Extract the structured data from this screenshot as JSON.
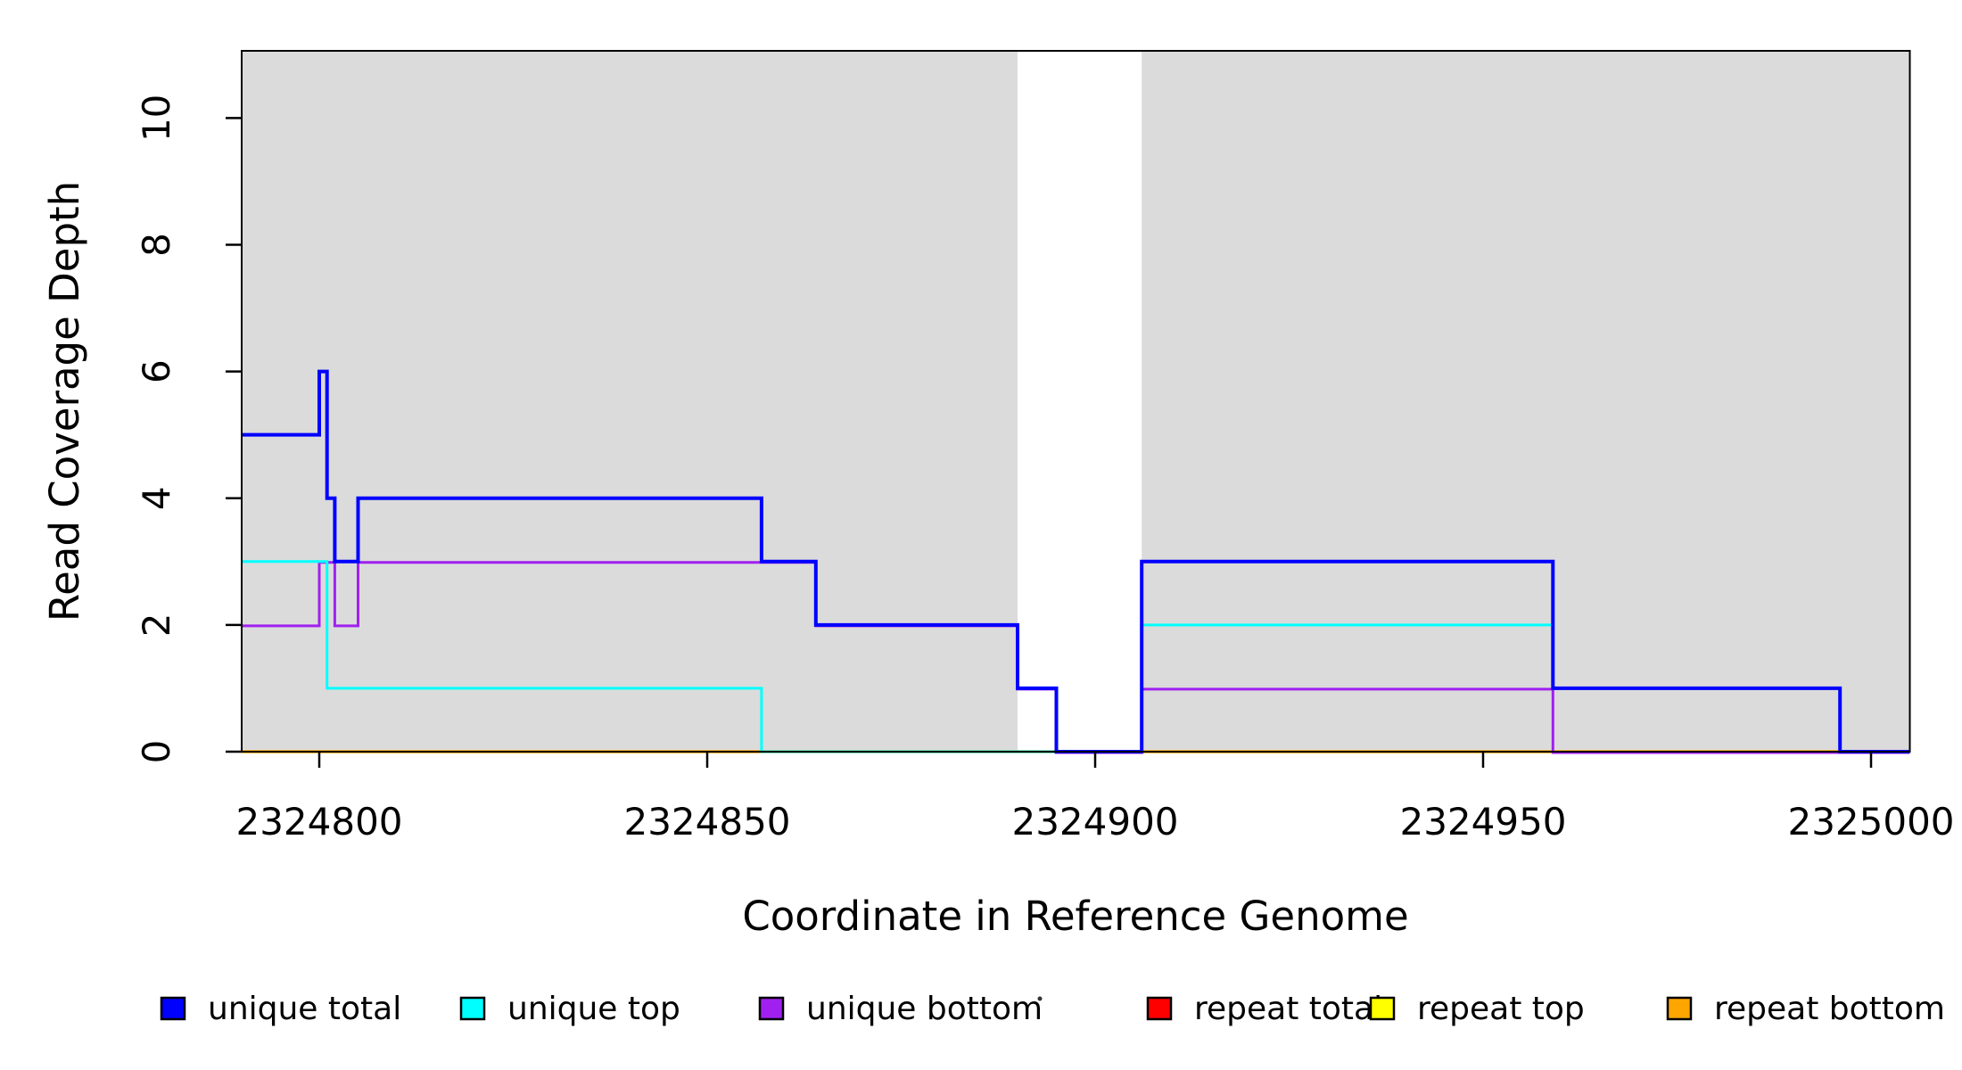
{
  "chart_data": {
    "type": "line",
    "subtype": "step-coverage",
    "title": "",
    "xlabel": "Coordinate in Reference Genome",
    "ylabel": "Read Coverage Depth",
    "xlim": [
      2324790,
      2325005
    ],
    "ylim": [
      0,
      11.06
    ],
    "x_ticks": [
      2324800,
      2324850,
      2324900,
      2324950,
      2325000
    ],
    "y_ticks": [
      0,
      2,
      4,
      6,
      8,
      10
    ],
    "grid": false,
    "background_color": "#ffffff",
    "shaded_regions": {
      "name": "repeat-masked-blocks",
      "color": "#dbdbdb",
      "intervals": [
        [
          2324790,
          2324890
        ],
        [
          2324906,
          2325005
        ]
      ]
    },
    "series": [
      {
        "name": "repeat total",
        "color": "#FF0000",
        "width": 2.5,
        "dy": 0,
        "steps": [
          [
            2324790,
            0
          ],
          [
            2325005,
            0
          ]
        ]
      },
      {
        "name": "repeat top",
        "color": "#FFFF00",
        "width": 2.5,
        "dy": 0,
        "steps": [
          [
            2324790,
            0
          ],
          [
            2325005,
            0
          ]
        ]
      },
      {
        "name": "repeat bottom",
        "color": "#FFA500",
        "width": 3.5,
        "dy": 0,
        "steps": [
          [
            2324790,
            0
          ],
          [
            2325005,
            0
          ]
        ]
      },
      {
        "name": "unique bottom",
        "color": "#A020F0",
        "width": 3,
        "dy": 1,
        "steps": [
          [
            2324790,
            2
          ],
          [
            2324800,
            3
          ],
          [
            2324802,
            2
          ],
          [
            2324805,
            3
          ],
          [
            2324864,
            2
          ],
          [
            2324890,
            1
          ],
          [
            2324895,
            0
          ],
          [
            2324906,
            1
          ],
          [
            2324959,
            0
          ],
          [
            2325005,
            0
          ]
        ]
      },
      {
        "name": "unique top",
        "color": "#00FFFF",
        "width": 3,
        "dy": 0,
        "steps": [
          [
            2324790,
            3
          ],
          [
            2324801,
            1
          ],
          [
            2324857,
            0
          ],
          [
            2324906,
            2
          ],
          [
            2324959,
            1
          ],
          [
            2324996,
            0
          ],
          [
            2325005,
            0
          ]
        ]
      },
      {
        "name": "unique total",
        "color": "#0000FF",
        "width": 4,
        "dy": 0,
        "steps": [
          [
            2324790,
            5
          ],
          [
            2324800,
            6
          ],
          [
            2324801,
            4
          ],
          [
            2324802,
            3
          ],
          [
            2324805,
            4
          ],
          [
            2324857,
            3
          ],
          [
            2324864,
            2
          ],
          [
            2324890,
            1
          ],
          [
            2324895,
            0
          ],
          [
            2324906,
            3
          ],
          [
            2324959,
            1
          ],
          [
            2324996,
            0
          ],
          [
            2325005,
            0
          ]
        ]
      }
    ],
    "legend_position": "bottom-horizontal"
  },
  "legend": {
    "items": [
      {
        "label": "unique total",
        "color": "#0000FF"
      },
      {
        "label": "unique top",
        "color": "#00FFFF"
      },
      {
        "label": "unique bottom",
        "color": "#A020F0"
      },
      {
        "label": "repeat total",
        "color": "#FF0000"
      },
      {
        "label": "repeat top",
        "color": "#FFFF00"
      },
      {
        "label": "repeat bottom",
        "color": "#FFA500"
      }
    ]
  }
}
